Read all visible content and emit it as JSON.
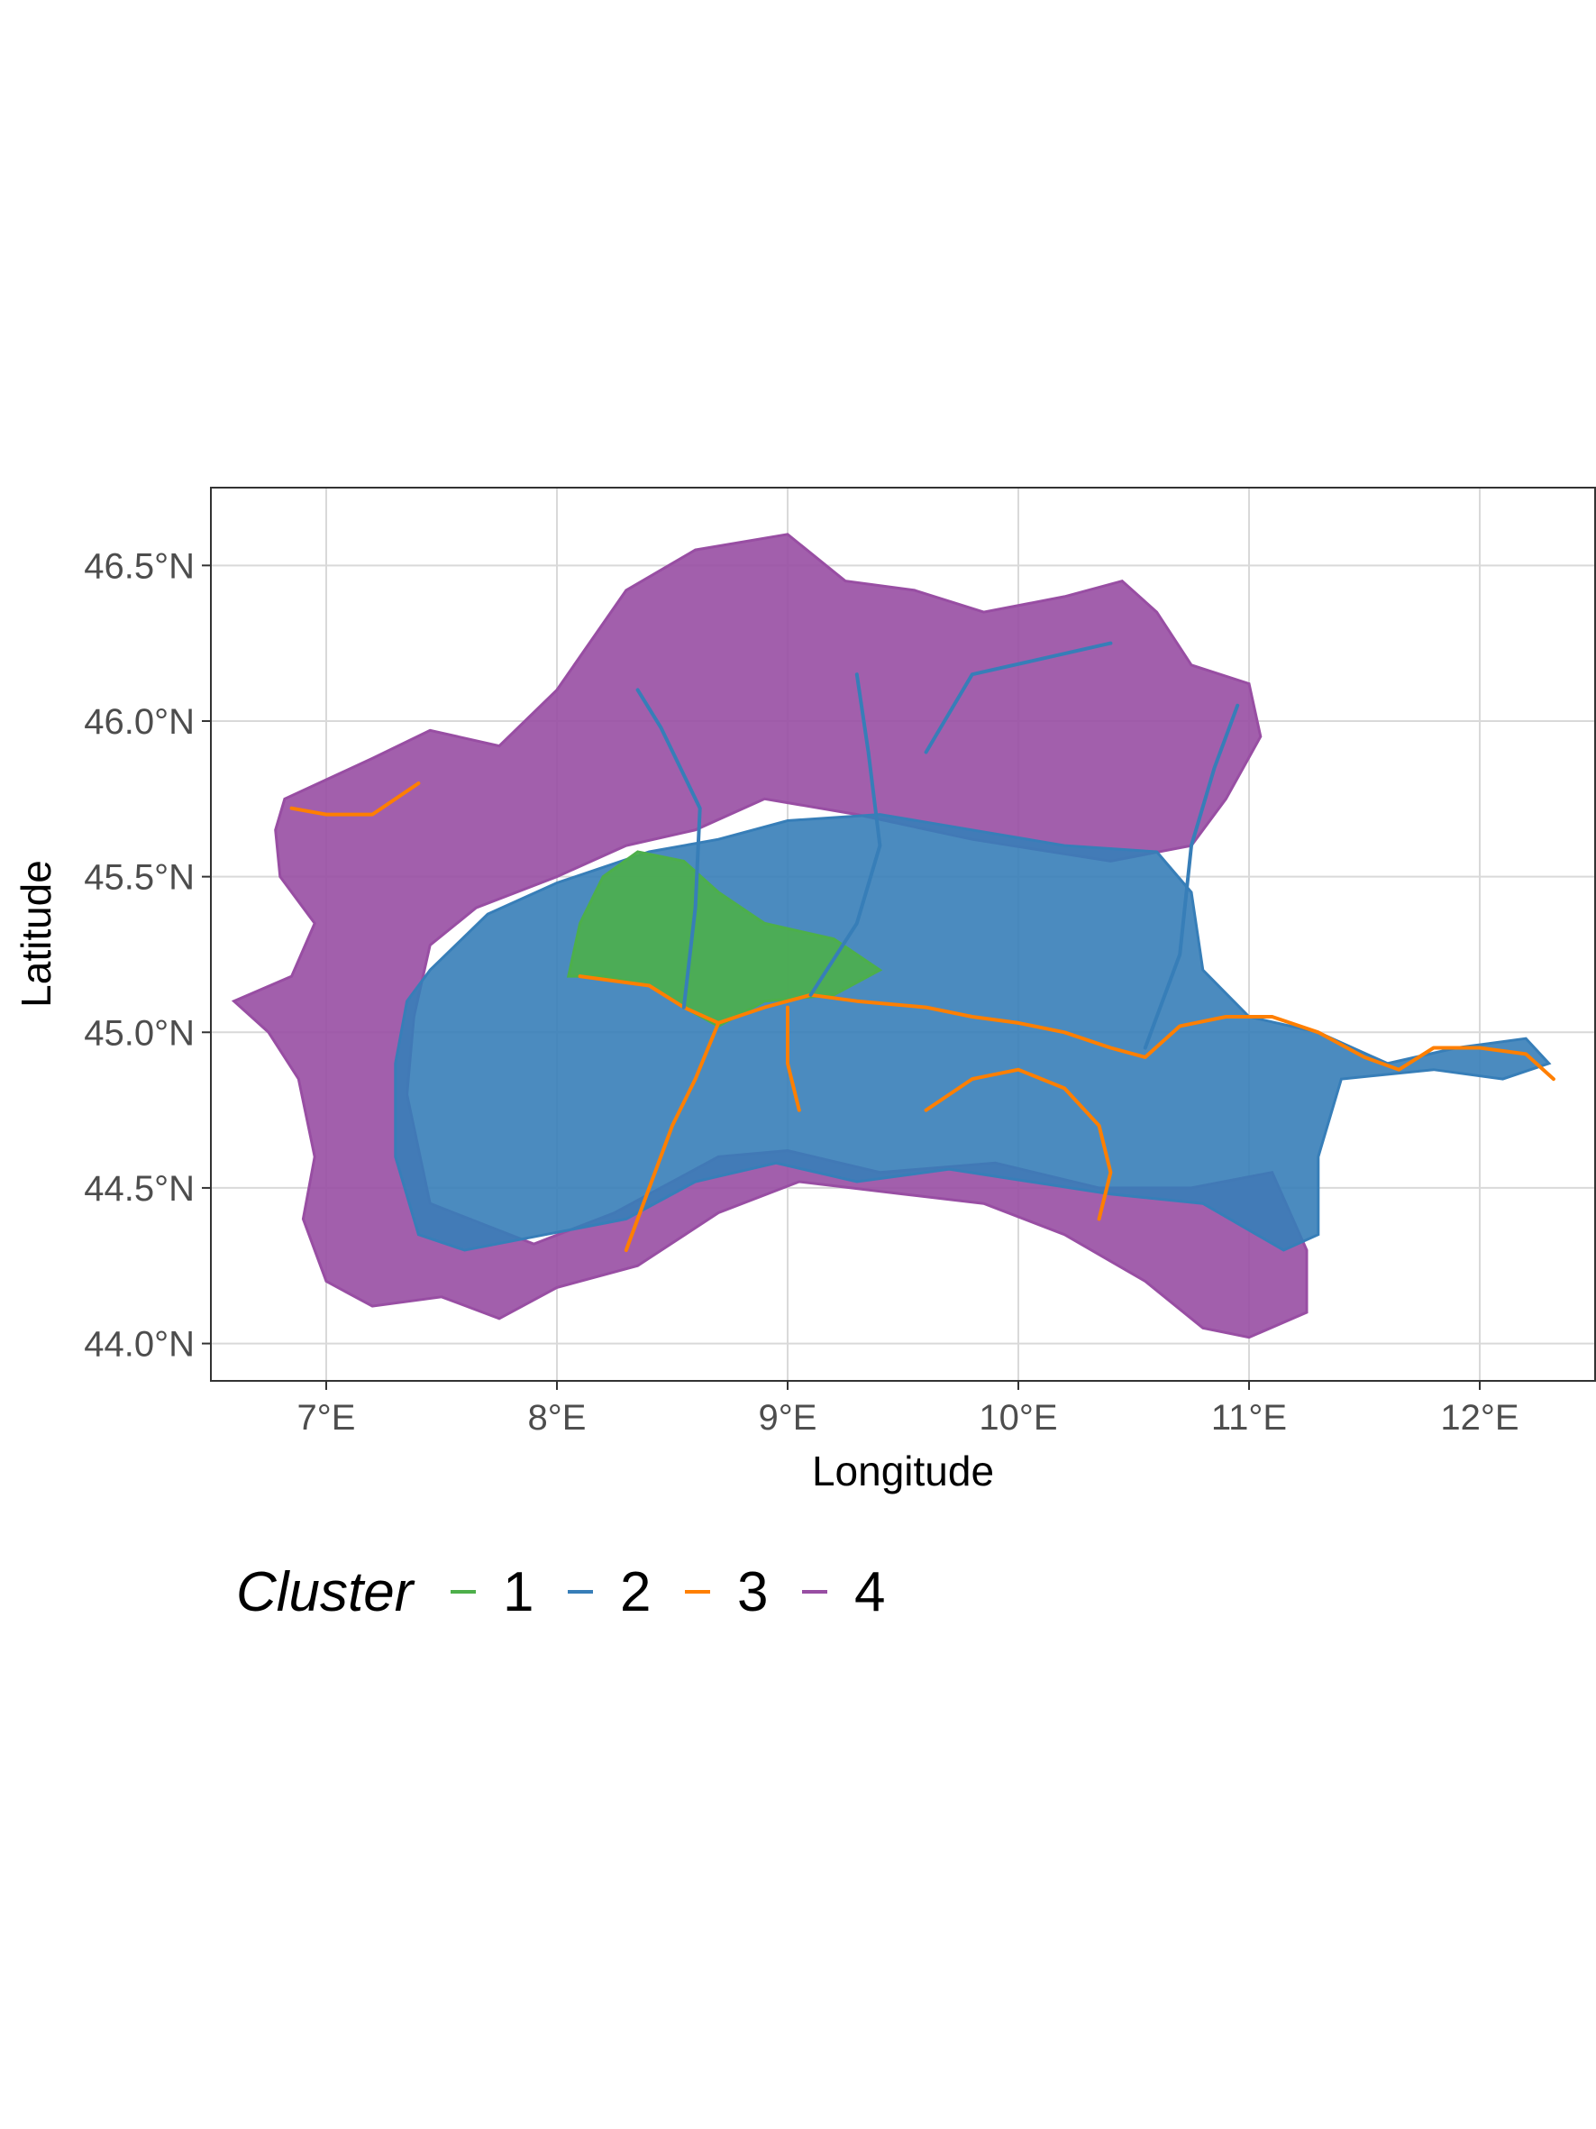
{
  "chart_data": {
    "type": "map",
    "xlabel": "Longitude",
    "ylabel": "Latitude",
    "xlim": [
      6.5,
      12.5
    ],
    "ylim": [
      43.88,
      46.75
    ],
    "grid": true,
    "x_ticks": [
      {
        "value": 7,
        "label": "7°E"
      },
      {
        "value": 8,
        "label": "8°E"
      },
      {
        "value": 9,
        "label": "9°E"
      },
      {
        "value": 10,
        "label": "10°E"
      },
      {
        "value": 11,
        "label": "11°E"
      },
      {
        "value": 12,
        "label": "12°E"
      }
    ],
    "y_ticks": [
      {
        "value": 44.0,
        "label": "44.0°N"
      },
      {
        "value": 44.5,
        "label": "44.5°N"
      },
      {
        "value": 45.0,
        "label": "45.0°N"
      },
      {
        "value": 45.5,
        "label": "45.5°N"
      },
      {
        "value": 46.0,
        "label": "46.0°N"
      },
      {
        "value": 46.5,
        "label": "46.5°N"
      }
    ],
    "legend": {
      "title": "Cluster",
      "position": "bottom",
      "items": [
        {
          "label": "1",
          "color": "#4daf4a"
        },
        {
          "label": "2",
          "color": "#377eb8"
        },
        {
          "label": "3",
          "color": "#ff7f00"
        },
        {
          "label": "4",
          "color": "#984ea3"
        }
      ]
    },
    "regions": [
      {
        "cluster": "4",
        "color": "#984ea3",
        "lonlat": [
          [
            6.82,
            45.75
          ],
          [
            7.2,
            45.88
          ],
          [
            7.45,
            45.97
          ],
          [
            7.75,
            45.92
          ],
          [
            8.0,
            46.1
          ],
          [
            8.3,
            46.42
          ],
          [
            8.6,
            46.55
          ],
          [
            9.0,
            46.6
          ],
          [
            9.25,
            46.45
          ],
          [
            9.55,
            46.42
          ],
          [
            9.85,
            46.35
          ],
          [
            10.2,
            46.4
          ],
          [
            10.45,
            46.45
          ],
          [
            10.6,
            46.35
          ],
          [
            10.75,
            46.18
          ],
          [
            11.0,
            46.12
          ],
          [
            11.05,
            45.95
          ],
          [
            10.9,
            45.75
          ],
          [
            10.75,
            45.6
          ],
          [
            10.4,
            45.55
          ],
          [
            9.8,
            45.62
          ],
          [
            9.3,
            45.7
          ],
          [
            8.9,
            45.75
          ],
          [
            8.6,
            45.65
          ],
          [
            8.3,
            45.6
          ],
          [
            8.0,
            45.5
          ],
          [
            7.65,
            45.4
          ],
          [
            7.45,
            45.28
          ],
          [
            7.38,
            45.05
          ],
          [
            7.35,
            44.8
          ],
          [
            7.45,
            44.45
          ],
          [
            7.9,
            44.32
          ],
          [
            8.25,
            44.42
          ],
          [
            8.7,
            44.6
          ],
          [
            9.0,
            44.62
          ],
          [
            9.4,
            44.55
          ],
          [
            9.9,
            44.58
          ],
          [
            10.35,
            44.5
          ],
          [
            10.75,
            44.5
          ],
          [
            11.1,
            44.55
          ],
          [
            11.25,
            44.3
          ],
          [
            11.25,
            44.1
          ],
          [
            11.0,
            44.02
          ],
          [
            10.8,
            44.05
          ],
          [
            10.55,
            44.2
          ],
          [
            10.2,
            44.35
          ],
          [
            9.85,
            44.45
          ],
          [
            9.5,
            44.48
          ],
          [
            9.05,
            44.52
          ],
          [
            8.7,
            44.42
          ],
          [
            8.35,
            44.25
          ],
          [
            8.0,
            44.18
          ],
          [
            7.75,
            44.08
          ],
          [
            7.5,
            44.15
          ],
          [
            7.2,
            44.12
          ],
          [
            7.0,
            44.2
          ],
          [
            6.9,
            44.4
          ],
          [
            6.95,
            44.6
          ],
          [
            6.88,
            44.85
          ],
          [
            6.75,
            45.0
          ],
          [
            6.6,
            45.1
          ],
          [
            6.85,
            45.18
          ],
          [
            6.95,
            45.35
          ],
          [
            6.8,
            45.5
          ],
          [
            6.78,
            45.65
          ]
        ]
      },
      {
        "cluster": "2",
        "color": "#377eb8",
        "lonlat": [
          [
            7.45,
            45.2
          ],
          [
            7.7,
            45.38
          ],
          [
            8.0,
            45.48
          ],
          [
            8.4,
            45.58
          ],
          [
            8.7,
            45.62
          ],
          [
            9.0,
            45.68
          ],
          [
            9.4,
            45.7
          ],
          [
            9.8,
            45.65
          ],
          [
            10.2,
            45.6
          ],
          [
            10.6,
            45.58
          ],
          [
            10.75,
            45.45
          ],
          [
            10.8,
            45.2
          ],
          [
            11.0,
            45.05
          ],
          [
            11.3,
            45.0
          ],
          [
            11.6,
            44.9
          ],
          [
            11.9,
            44.95
          ],
          [
            12.2,
            44.98
          ],
          [
            12.3,
            44.9
          ],
          [
            12.1,
            44.85
          ],
          [
            11.8,
            44.88
          ],
          [
            11.4,
            44.85
          ],
          [
            11.3,
            44.6
          ],
          [
            11.3,
            44.35
          ],
          [
            11.15,
            44.3
          ],
          [
            10.8,
            44.45
          ],
          [
            10.4,
            44.48
          ],
          [
            10.05,
            44.52
          ],
          [
            9.7,
            44.56
          ],
          [
            9.3,
            44.52
          ],
          [
            8.95,
            44.58
          ],
          [
            8.6,
            44.52
          ],
          [
            8.3,
            44.4
          ],
          [
            7.95,
            44.35
          ],
          [
            7.6,
            44.3
          ],
          [
            7.4,
            44.35
          ],
          [
            7.3,
            44.6
          ],
          [
            7.3,
            44.9
          ],
          [
            7.35,
            45.1
          ]
        ]
      },
      {
        "cluster": "1",
        "color": "#4daf4a",
        "lonlat": [
          [
            8.05,
            45.18
          ],
          [
            8.1,
            45.35
          ],
          [
            8.2,
            45.5
          ],
          [
            8.35,
            45.58
          ],
          [
            8.55,
            45.55
          ],
          [
            8.7,
            45.45
          ],
          [
            8.9,
            45.35
          ],
          [
            9.2,
            45.3
          ],
          [
            9.4,
            45.2
          ],
          [
            9.2,
            45.12
          ],
          [
            8.9,
            45.1
          ],
          [
            8.7,
            45.02
          ],
          [
            8.55,
            45.08
          ],
          [
            8.4,
            45.15
          ],
          [
            8.2,
            45.18
          ]
        ]
      }
    ],
    "rivers": [
      {
        "cluster": "3",
        "color": "#ff7f00",
        "name": "",
        "lonlat": [
          [
            8.1,
            45.18
          ],
          [
            8.4,
            45.15
          ],
          [
            8.55,
            45.08
          ],
          [
            8.7,
            45.03
          ],
          [
            8.9,
            45.08
          ],
          [
            9.1,
            45.12
          ],
          [
            9.3,
            45.1
          ],
          [
            9.6,
            45.08
          ],
          [
            9.8,
            45.05
          ],
          [
            10.0,
            45.03
          ],
          [
            10.2,
            45.0
          ],
          [
            10.4,
            44.95
          ],
          [
            10.55,
            44.92
          ],
          [
            10.7,
            45.02
          ],
          [
            10.9,
            45.05
          ],
          [
            11.1,
            45.05
          ],
          [
            11.3,
            45.0
          ],
          [
            11.5,
            44.92
          ],
          [
            11.65,
            44.88
          ],
          [
            11.8,
            44.95
          ],
          [
            12.0,
            44.95
          ],
          [
            12.2,
            44.93
          ],
          [
            12.32,
            44.85
          ]
        ]
      },
      {
        "cluster": "3",
        "color": "#ff7f00",
        "name": "",
        "lonlat": [
          [
            9.6,
            44.75
          ],
          [
            9.8,
            44.85
          ],
          [
            10.0,
            44.88
          ],
          [
            10.2,
            44.82
          ],
          [
            10.35,
            44.7
          ],
          [
            10.4,
            44.55
          ],
          [
            10.35,
            44.4
          ]
        ]
      },
      {
        "cluster": "3",
        "color": "#ff7f00",
        "name": "",
        "lonlat": [
          [
            8.7,
            45.03
          ],
          [
            8.6,
            44.85
          ],
          [
            8.5,
            44.7
          ],
          [
            8.4,
            44.5
          ],
          [
            8.3,
            44.3
          ]
        ]
      },
      {
        "cluster": "3",
        "color": "#ff7f00",
        "name": "",
        "lonlat": [
          [
            9.0,
            45.08
          ],
          [
            9.0,
            44.9
          ],
          [
            9.05,
            44.75
          ]
        ]
      },
      {
        "cluster": "3",
        "color": "#ff7f00",
        "name": "",
        "lonlat": [
          [
            6.85,
            45.72
          ],
          [
            7.0,
            45.7
          ],
          [
            7.2,
            45.7
          ],
          [
            7.4,
            45.8
          ]
        ]
      },
      {
        "cluster": "2",
        "color": "#377eb8",
        "name": "",
        "lonlat": [
          [
            8.55,
            45.08
          ],
          [
            8.6,
            45.4
          ],
          [
            8.62,
            45.72
          ],
          [
            8.45,
            45.98
          ],
          [
            8.35,
            46.1
          ]
        ]
      },
      {
        "cluster": "2",
        "color": "#377eb8",
        "name": "",
        "lonlat": [
          [
            9.1,
            45.12
          ],
          [
            9.3,
            45.35
          ],
          [
            9.4,
            45.6
          ],
          [
            9.35,
            45.9
          ],
          [
            9.3,
            46.15
          ]
        ]
      },
      {
        "cluster": "2",
        "color": "#377eb8",
        "name": "",
        "lonlat": [
          [
            10.55,
            44.95
          ],
          [
            10.7,
            45.25
          ],
          [
            10.75,
            45.6
          ],
          [
            10.85,
            45.85
          ],
          [
            10.95,
            46.05
          ]
        ]
      },
      {
        "cluster": "2",
        "color": "#377eb8",
        "name": "",
        "lonlat": [
          [
            9.6,
            45.9
          ],
          [
            9.8,
            46.15
          ],
          [
            10.1,
            46.2
          ],
          [
            10.4,
            46.25
          ]
        ]
      }
    ]
  }
}
